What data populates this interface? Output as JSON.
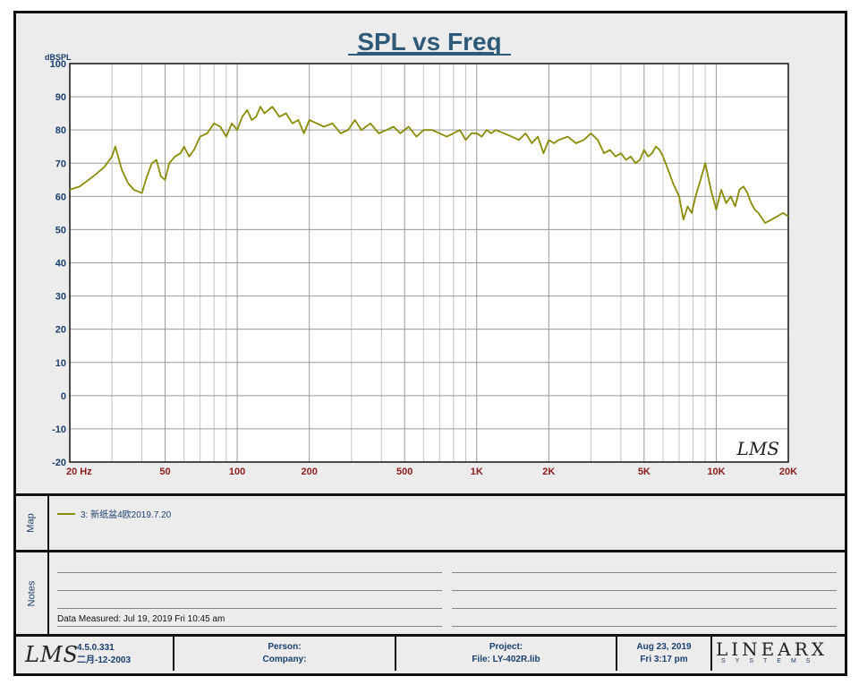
{
  "chart_data": {
    "type": "line",
    "title": "SPL vs Freq",
    "ylabel": "dBSPL",
    "xscale": "log",
    "xlim": [
      20,
      20000
    ],
    "ylim": [
      -20,
      100
    ],
    "yticks": [
      -20,
      -10,
      0,
      10,
      20,
      30,
      40,
      50,
      60,
      70,
      80,
      90,
      100
    ],
    "xticks": [
      {
        "value": 20,
        "label": "20  Hz"
      },
      {
        "value": 50,
        "label": "50"
      },
      {
        "value": 100,
        "label": "100"
      },
      {
        "value": 200,
        "label": "200"
      },
      {
        "value": 500,
        "label": "500"
      },
      {
        "value": 1000,
        "label": "1K"
      },
      {
        "value": 2000,
        "label": "2K"
      },
      {
        "value": 5000,
        "label": "5K"
      },
      {
        "value": 10000,
        "label": "10K"
      },
      {
        "value": 20000,
        "label": "20K"
      }
    ],
    "grid": true,
    "series": [
      {
        "name": "3: 新纸盆4欧2019.7.20",
        "color": "#8b8b00",
        "x": [
          20,
          22,
          24,
          26,
          28,
          30,
          31,
          33,
          35,
          37,
          40,
          42,
          44,
          46,
          48,
          50,
          52,
          55,
          58,
          60,
          63,
          66,
          70,
          75,
          80,
          85,
          90,
          95,
          100,
          105,
          110,
          115,
          120,
          125,
          130,
          140,
          150,
          160,
          170,
          180,
          190,
          200,
          215,
          230,
          250,
          270,
          290,
          310,
          330,
          360,
          390,
          420,
          450,
          480,
          520,
          560,
          600,
          650,
          700,
          750,
          800,
          850,
          900,
          950,
          1000,
          1050,
          1100,
          1150,
          1200,
          1300,
          1400,
          1500,
          1600,
          1700,
          1800,
          1900,
          2000,
          2100,
          2200,
          2400,
          2600,
          2800,
          3000,
          3200,
          3400,
          3600,
          3800,
          4000,
          4200,
          4400,
          4600,
          4800,
          5000,
          5200,
          5400,
          5600,
          5800,
          6000,
          6300,
          6600,
          7000,
          7300,
          7600,
          7900,
          8200,
          8600,
          9000,
          9500,
          10000,
          10500,
          11000,
          11500,
          12000,
          12500,
          13000,
          13500,
          14000,
          14500,
          15000,
          16000,
          17000,
          18000,
          19000,
          20000
        ],
        "y": [
          62,
          63,
          65,
          67,
          69,
          72,
          75,
          68,
          64,
          62,
          61,
          66,
          70,
          71,
          66,
          65,
          70,
          72,
          73,
          75,
          72,
          74,
          78,
          79,
          82,
          81,
          78,
          82,
          80,
          84,
          86,
          83,
          84,
          87,
          85,
          87,
          84,
          85,
          82,
          83,
          79,
          83,
          82,
          81,
          82,
          79,
          80,
          83,
          80,
          82,
          79,
          80,
          81,
          79,
          81,
          78,
          80,
          80,
          79,
          78,
          79,
          80,
          77,
          79,
          79,
          78,
          80,
          79,
          80,
          79,
          78,
          77,
          79,
          76,
          78,
          73,
          77,
          76,
          77,
          78,
          76,
          77,
          79,
          77,
          73,
          74,
          72,
          73,
          71,
          72,
          70,
          71,
          74,
          72,
          73,
          75,
          74,
          72,
          68,
          64,
          60,
          53,
          57,
          55,
          60,
          65,
          70,
          62,
          56,
          62,
          58,
          60,
          57,
          62,
          63,
          61,
          58,
          56,
          55,
          52,
          53,
          54,
          55,
          54
        ]
      }
    ]
  },
  "map_panel": {
    "label": "Map",
    "legend_text": "3: 新纸盆4欧2019.7.20",
    "legend_color": "#8b8b00"
  },
  "notes_panel": {
    "label": "Notes",
    "data_measured": "Data Measured: Jul 19, 2019  Fri 10:45 am"
  },
  "footer": {
    "logo": "LMS",
    "version": "4.5.0.331",
    "version_date": "二月-12-2003",
    "person_label": "Person:",
    "company_label": "Company:",
    "project_label": "Project:",
    "file_label": "File: LY-402R.lib",
    "date": "Aug 23, 2019",
    "time": "Fri  3:17 pm",
    "brand_word": "LINEARX",
    "brand_sub": "SYSTEMS"
  },
  "watermark": "LMS",
  "colors": {
    "title": "#2e5a7a",
    "axis_text": "#1a3f6e",
    "tick_x": "#8b1a1a",
    "grid_major": "#999999",
    "grid_minor": "#c4c4c4",
    "trace": "#8b8b00"
  }
}
